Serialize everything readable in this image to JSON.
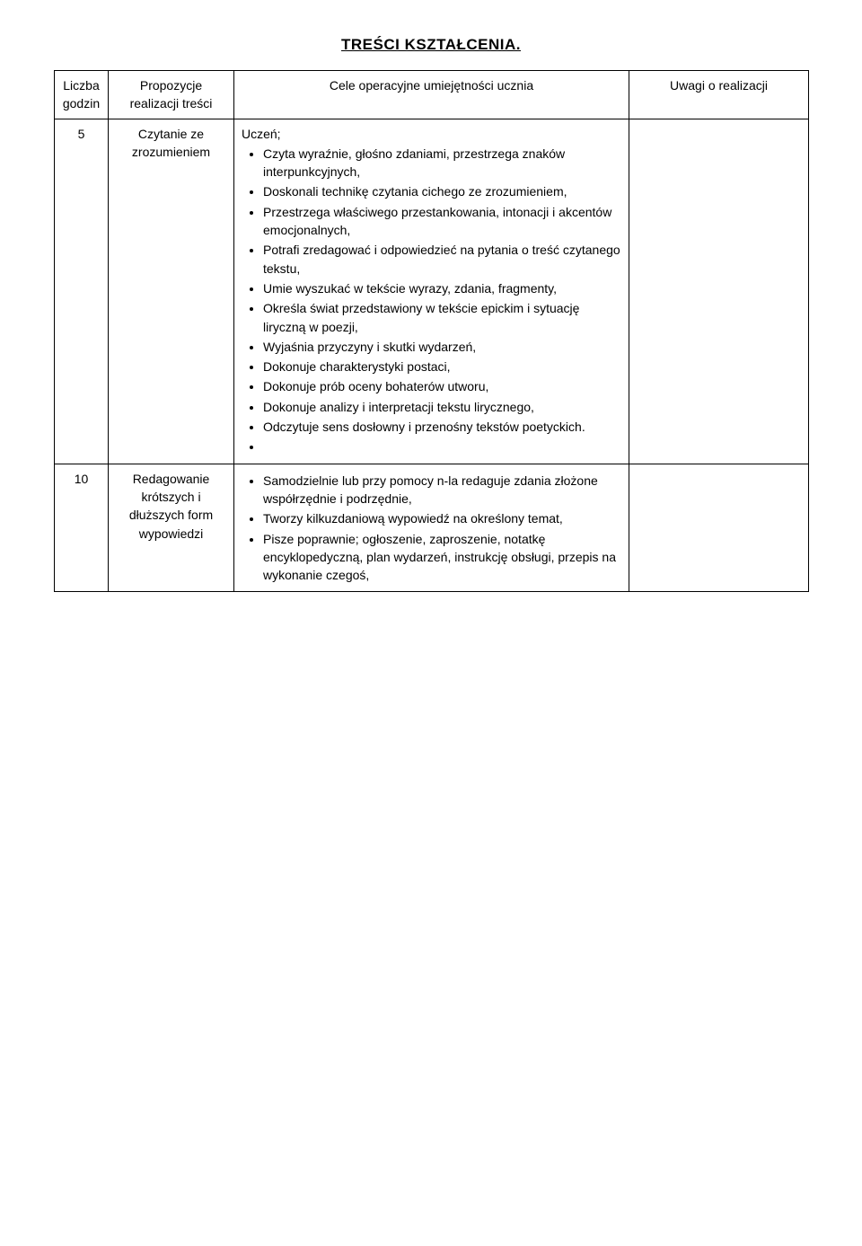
{
  "title": "TREŚCI KSZTAŁCENIA.",
  "headers": {
    "col0": "Liczba godzin",
    "col1": "Propozycje realizacji treści",
    "col2": "Cele operacyjne umiejętności ucznia",
    "col3": "Uwagi o realizacji"
  },
  "rows": [
    {
      "num": "5",
      "prop": "Czytanie ze zrozumieniem",
      "lead": "Uczeń;",
      "bullets": [
        "Czyta wyraźnie, głośno zdaniami, przestrzega znaków interpunkcyjnych,",
        "Doskonali technikę czytania cichego ze zrozumieniem,",
        "Przestrzega właściwego przestankowania, intonacji i akcentów emocjonalnych,",
        "Potrafi zredagować i odpowiedzieć na pytania o treść czytanego tekstu,",
        "Umie wyszukać w tekście wyrazy, zdania, fragmenty,",
        "Określa świat przedstawiony w tekście epickim i sytuację liryczną w poezji,",
        "Wyjaśnia przyczyny i skutki wydarzeń,",
        "Dokonuje charakterystyki postaci,",
        "Dokonuje prób oceny bohaterów utworu,",
        "Dokonuje analizy i interpretacji tekstu lirycznego,",
        "Odczytuje sens dosłowny i przenośny tekstów poetyckich."
      ],
      "trailing_empty": true
    },
    {
      "num": "10",
      "prop": "Redagowanie krótszych i dłuższych form wypowiedzi",
      "lead": "",
      "bullets": [
        "Samodzielnie lub przy pomocy n-la redaguje zdania złożone współrzędnie i podrzędnie,",
        "Tworzy kilkuzdaniową wypowiedź na określony temat,",
        "Pisze poprawnie; ogłoszenie, zaproszenie, notatkę encyklopedyczną, plan wydarzeń, instrukcję obsługi, przepis na wykonanie czegoś,"
      ],
      "trailing_empty": false
    }
  ]
}
